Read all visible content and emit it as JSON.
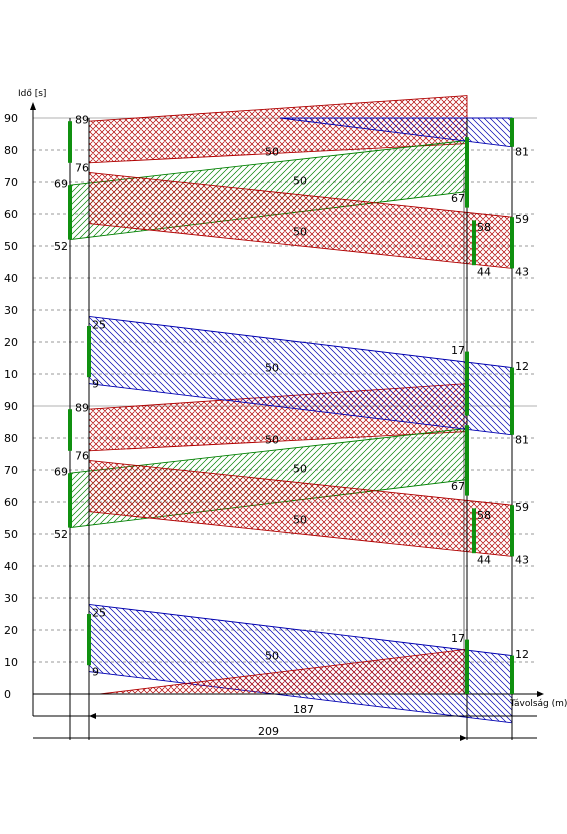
{
  "chart_data": {
    "type": "other",
    "description_type": "time-space green wave diagram",
    "ylabel": "Idő [s]",
    "xlabel": "Távolság (m)",
    "cycle_time": 90,
    "ylim": [
      0,
      180
    ],
    "y_ticks_lower": [
      "0",
      "10",
      "20",
      "30",
      "40",
      "50",
      "60",
      "70",
      "80",
      "90"
    ],
    "y_ticks_upper": [
      "10",
      "20",
      "30",
      "40",
      "50",
      "60",
      "70",
      "80",
      "90"
    ],
    "distances": {
      "inner": "187",
      "outer": "209"
    },
    "intersections": [
      {
        "x": 0,
        "greens": [
          [
            52,
            69
          ],
          [
            76,
            89
          ]
        ]
      },
      {
        "x": 11,
        "greens": [
          [
            9,
            25
          ],
          [
            76,
            89
          ]
        ]
      },
      {
        "x": 198,
        "greens": [
          [
            -23,
            17
          ],
          [
            67,
            82
          ]
        ]
      },
      {
        "x": 202,
        "greens": [
          [
            44,
            58
          ]
        ]
      },
      {
        "x": 209,
        "greens": [
          [
            43,
            59
          ],
          [
            -9,
            12
          ],
          [
            81,
            90
          ]
        ]
      }
    ],
    "signal_labels_per_cycle": [
      "89",
      "76",
      "69",
      "52",
      "25",
      "9",
      "17",
      "67",
      "58",
      "44",
      "59",
      "43",
      "12",
      "81"
    ],
    "bands": [
      {
        "color": "#c00000",
        "bandwidth_label": "50",
        "direction": "inbound"
      },
      {
        "color": "#008000",
        "bandwidth_label": "50",
        "direction": "outbound"
      },
      {
        "color": "#c00000",
        "bandwidth_label": "50",
        "direction": "inbound"
      },
      {
        "color": "#0000c0",
        "bandwidth_label": "50",
        "direction": "inbound"
      }
    ],
    "colors": {
      "green_signal": "#109010",
      "band_red": "#b00000",
      "band_green": "#008000",
      "band_blue": "#0000b0"
    }
  }
}
